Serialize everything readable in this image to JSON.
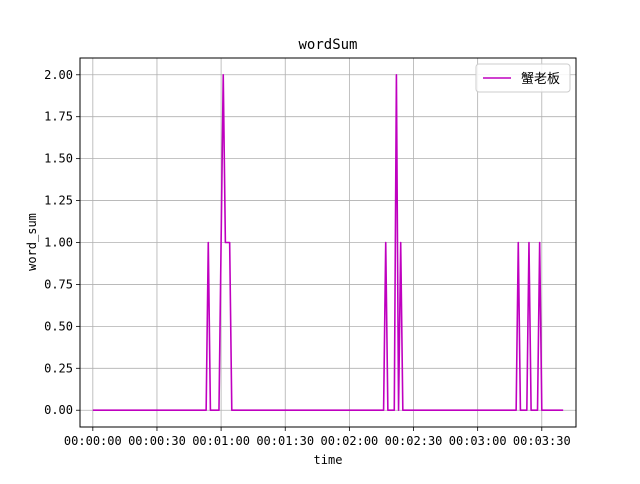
{
  "chart_data": {
    "type": "line",
    "title": "wordSum",
    "xlabel": "time",
    "ylabel": "word_sum",
    "x_unit": "seconds",
    "xlim": [
      -6,
      226
    ],
    "ylim": [
      -0.1,
      2.1
    ],
    "x_ticks": [
      {
        "value": 0,
        "label": "00:00:00"
      },
      {
        "value": 30,
        "label": "00:00:30"
      },
      {
        "value": 60,
        "label": "00:01:00"
      },
      {
        "value": 90,
        "label": "00:01:30"
      },
      {
        "value": 120,
        "label": "00:02:00"
      },
      {
        "value": 150,
        "label": "00:02:30"
      },
      {
        "value": 180,
        "label": "00:03:00"
      },
      {
        "value": 210,
        "label": "00:03:30"
      }
    ],
    "y_ticks": [
      {
        "value": 0,
        "label": "0.00"
      },
      {
        "value": 0.25,
        "label": "0.25"
      },
      {
        "value": 0.5,
        "label": "0.50"
      },
      {
        "value": 0.75,
        "label": "0.75"
      },
      {
        "value": 1,
        "label": "1.00"
      },
      {
        "value": 1.25,
        "label": "1.25"
      },
      {
        "value": 1.5,
        "label": "1.50"
      },
      {
        "value": 1.75,
        "label": "1.75"
      },
      {
        "value": 2,
        "label": "2.00"
      }
    ],
    "grid": true,
    "legend_position": "top-right",
    "series": [
      {
        "name": "蟹老板",
        "color": "#bf00bf",
        "points": [
          [
            0,
            0
          ],
          [
            53,
            0
          ],
          [
            54,
            1
          ],
          [
            55,
            0
          ],
          [
            59,
            0
          ],
          [
            60,
            1
          ],
          [
            61,
            2
          ],
          [
            62,
            1
          ],
          [
            64,
            1
          ],
          [
            65,
            0
          ],
          [
            136,
            0
          ],
          [
            137,
            1
          ],
          [
            138,
            0
          ],
          [
            141,
            0
          ],
          [
            142,
            2
          ],
          [
            143,
            0
          ],
          [
            144,
            1
          ],
          [
            145,
            0
          ],
          [
            198,
            0
          ],
          [
            199,
            1
          ],
          [
            200,
            0
          ],
          [
            203,
            0
          ],
          [
            204,
            1
          ],
          [
            205,
            0
          ],
          [
            208,
            0
          ],
          [
            209,
            1
          ],
          [
            210,
            0
          ],
          [
            220,
            0
          ]
        ]
      }
    ]
  }
}
